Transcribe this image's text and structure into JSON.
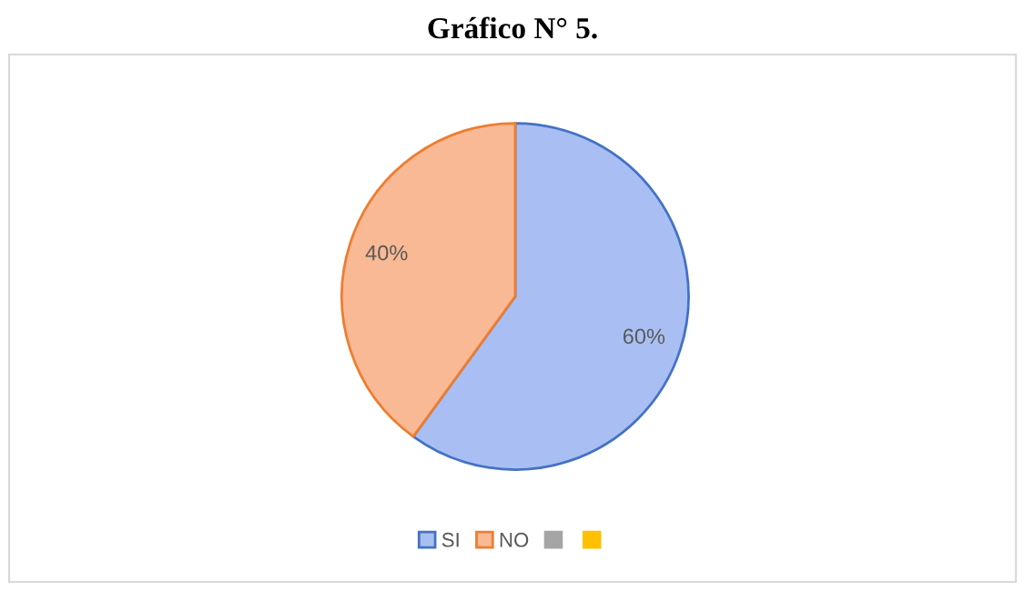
{
  "chart_data": {
    "type": "pie",
    "title": "Gráfico N° 5.",
    "categories": [
      "SI",
      "NO",
      null,
      null
    ],
    "values": [
      60,
      40,
      0,
      0
    ],
    "colors": [
      "#a9bff3",
      "#f8b994",
      "#a5a5a5",
      "#ffc000"
    ],
    "value_labels": [
      "60%",
      "40%",
      null,
      null
    ],
    "legend": "bottom"
  }
}
